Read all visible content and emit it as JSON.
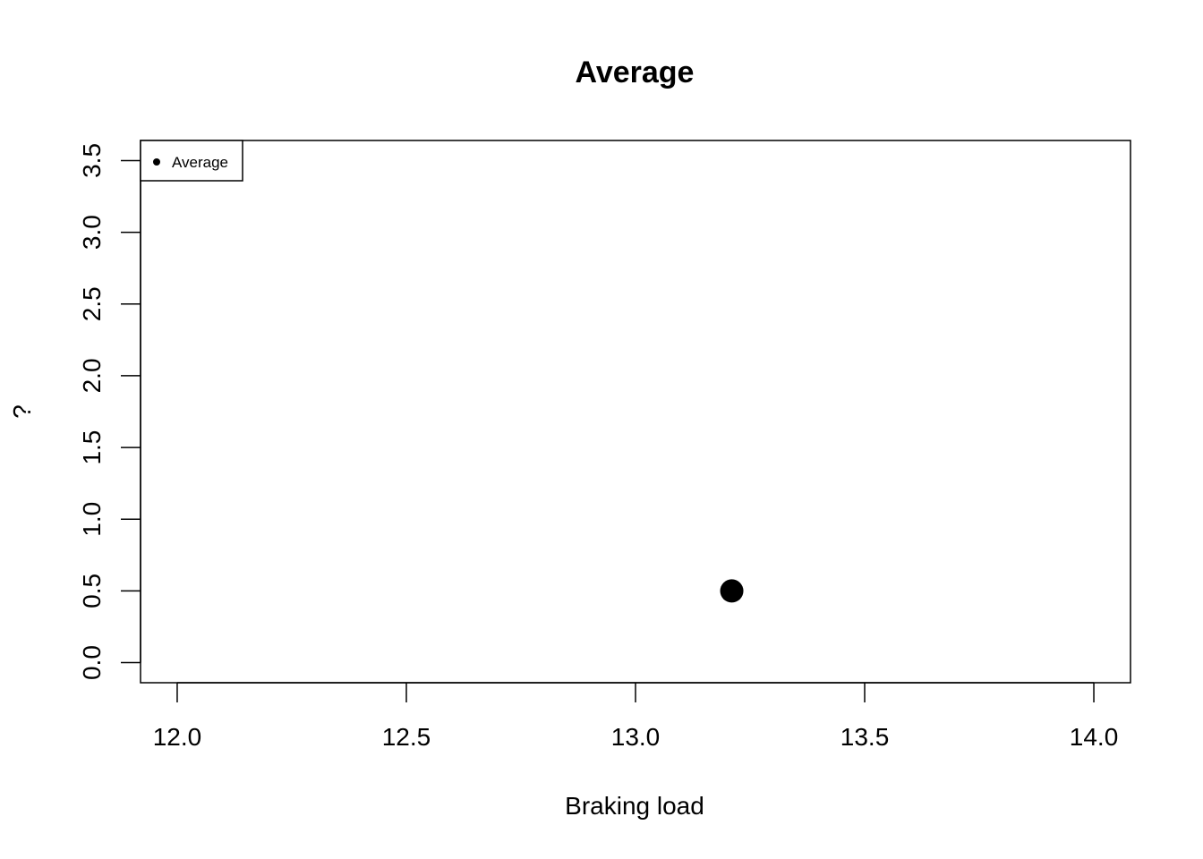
{
  "chart_data": {
    "type": "scatter",
    "title": "Average",
    "xlabel": "Braking load",
    "ylabel": "?",
    "xlim": [
      11.92,
      14.08
    ],
    "ylim": [
      -0.14,
      3.64
    ],
    "x_ticks": [
      12.0,
      12.5,
      13.0,
      13.5,
      14.0
    ],
    "x_tick_labels": [
      "12.0",
      "12.5",
      "13.0",
      "13.5",
      "14.0"
    ],
    "y_ticks": [
      0.0,
      0.5,
      1.0,
      1.5,
      2.0,
      2.5,
      3.0,
      3.5
    ],
    "y_tick_labels": [
      "0.0",
      "0.5",
      "1.0",
      "1.5",
      "2.0",
      "2.5",
      "3.0",
      "3.5"
    ],
    "grid": false,
    "legend_position": "top-left",
    "series": [
      {
        "name": "Average",
        "color": "#000000",
        "points": [
          {
            "x": 13.21,
            "y": 0.5
          }
        ]
      }
    ]
  }
}
